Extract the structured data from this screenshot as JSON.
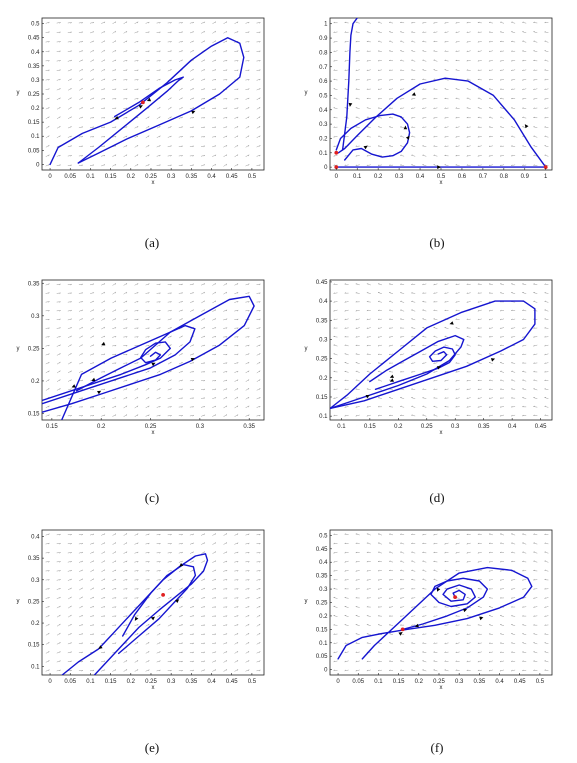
{
  "colors": {
    "trajectory": "#1515d0",
    "equilibrium": "#e02020",
    "vector_field": "#9a9a9a",
    "arrow": "#000000"
  },
  "chart_data": [
    {
      "type": "line",
      "caption": "(a)",
      "xlabel": "x",
      "ylabel": "y",
      "xlim": [
        -0.02,
        0.53
      ],
      "ylim": [
        -0.02,
        0.52
      ],
      "xticks": [
        0,
        0.05,
        0.1,
        0.15,
        0.2,
        0.25,
        0.3,
        0.35,
        0.4,
        0.45,
        0.5
      ],
      "yticks": [
        0,
        0.05,
        0.1,
        0.15,
        0.2,
        0.25,
        0.3,
        0.35,
        0.4,
        0.45,
        0.5
      ],
      "grid": true,
      "vector_field": true,
      "equilibria": [
        [
          0.23,
          0.22
        ]
      ],
      "series": [
        {
          "x": [
            0.0,
            0.02,
            0.08,
            0.15,
            0.22,
            0.29,
            0.35,
            0.4,
            0.44,
            0.47,
            0.48,
            0.47,
            0.42,
            0.35,
            0.27,
            0.19,
            0.12,
            0.07
          ],
          "y": [
            0.0,
            0.06,
            0.11,
            0.15,
            0.21,
            0.29,
            0.37,
            0.42,
            0.45,
            0.43,
            0.38,
            0.31,
            0.25,
            0.19,
            0.14,
            0.09,
            0.04,
            0.005
          ]
        },
        {
          "x": [
            0.07,
            0.12,
            0.18,
            0.24,
            0.29,
            0.32,
            0.33,
            0.31,
            0.27,
            0.22,
            0.16
          ],
          "y": [
            0.005,
            0.06,
            0.13,
            0.2,
            0.26,
            0.3,
            0.31,
            0.3,
            0.27,
            0.22,
            0.17
          ]
        }
      ],
      "arrows": [
        [
          0.19,
          0.18,
          0.23,
          0.21
        ],
        [
          0.28,
          0.25,
          0.24,
          0.225
        ],
        [
          0.33,
          0.17,
          0.36,
          0.19
        ],
        [
          0.2,
          0.19,
          0.16,
          0.16
        ]
      ]
    },
    {
      "type": "line",
      "caption": "(b)",
      "xlabel": "x",
      "ylabel": "y",
      "xlim": [
        -0.03,
        1.03
      ],
      "ylim": [
        -0.02,
        1.04
      ],
      "xticks": [
        0,
        0.1,
        0.2,
        0.3,
        0.4,
        0.5,
        0.6,
        0.7,
        0.8,
        0.9,
        1
      ],
      "yticks": [
        0,
        0.1,
        0.2,
        0.3,
        0.4,
        0.5,
        0.6,
        0.7,
        0.8,
        0.9,
        1
      ],
      "grid": true,
      "vector_field": true,
      "equilibria": [
        [
          0,
          0
        ],
        [
          1,
          0
        ],
        [
          0,
          0.1
        ]
      ],
      "series": [
        {
          "x": [
            0.0,
            0.2,
            0.4,
            0.6,
            0.8,
            1.0
          ],
          "y": [
            0.0,
            0.0,
            0.0,
            0.0,
            0.0,
            0.0
          ]
        },
        {
          "x": [
            1.0,
            0.93,
            0.85,
            0.75,
            0.63,
            0.52,
            0.4,
            0.29,
            0.19,
            0.1,
            0.04,
            0.01
          ],
          "y": [
            0.0,
            0.14,
            0.33,
            0.5,
            0.6,
            0.62,
            0.58,
            0.48,
            0.35,
            0.22,
            0.13,
            0.1
          ]
        },
        {
          "x": [
            0.03,
            0.05,
            0.06,
            0.065,
            0.07,
            0.08,
            0.1
          ],
          "y": [
            0.12,
            0.35,
            0.6,
            0.8,
            0.92,
            1.0,
            1.04
          ]
        },
        {
          "x": [
            0.0,
            0.02,
            0.07,
            0.14,
            0.21,
            0.27,
            0.31,
            0.34,
            0.35,
            0.34,
            0.31,
            0.27,
            0.22,
            0.17,
            0.12,
            0.08,
            0.04
          ],
          "y": [
            0.12,
            0.2,
            0.27,
            0.33,
            0.36,
            0.37,
            0.35,
            0.3,
            0.24,
            0.17,
            0.11,
            0.08,
            0.07,
            0.09,
            0.13,
            0.12,
            0.05
          ]
        }
      ],
      "arrows": [
        [
          0.45,
          0.0,
          0.5,
          0.0
        ],
        [
          0.92,
          0.26,
          0.9,
          0.3
        ],
        [
          0.41,
          0.53,
          0.36,
          0.5
        ],
        [
          0.07,
          0.47,
          0.065,
          0.42
        ],
        [
          0.12,
          0.12,
          0.15,
          0.15
        ],
        [
          0.33,
          0.18,
          0.35,
          0.22
        ],
        [
          0.33,
          0.24,
          0.33,
          0.29
        ]
      ]
    },
    {
      "type": "line",
      "caption": "(c)",
      "xlabel": "x",
      "ylabel": "y",
      "xlim": [
        0.14,
        0.365
      ],
      "ylim": [
        0.14,
        0.355
      ],
      "xticks": [
        0.15,
        0.2,
        0.25,
        0.3,
        0.35
      ],
      "yticks": [
        0.15,
        0.2,
        0.25,
        0.3,
        0.35
      ],
      "grid": true,
      "vector_field": true,
      "equilibria": [],
      "series": [
        {
          "x": [
            0.14,
            0.17,
            0.2,
            0.23,
            0.26,
            0.29,
            0.32,
            0.345,
            0.355,
            0.35,
            0.33,
            0.3,
            0.27,
            0.24,
            0.21,
            0.18,
            0.16
          ],
          "y": [
            0.152,
            0.165,
            0.18,
            0.195,
            0.21,
            0.23,
            0.255,
            0.285,
            0.315,
            0.33,
            0.325,
            0.3,
            0.275,
            0.255,
            0.235,
            0.21,
            0.14
          ]
        },
        {
          "x": [
            0.14,
            0.18,
            0.22,
            0.25,
            0.275,
            0.29,
            0.295,
            0.285,
            0.27,
            0.255,
            0.24,
            0.22,
            0.2,
            0.175
          ],
          "y": [
            0.165,
            0.185,
            0.205,
            0.22,
            0.24,
            0.26,
            0.28,
            0.285,
            0.275,
            0.255,
            0.235,
            0.22,
            0.205,
            0.185
          ]
        },
        {
          "x": [
            0.14,
            0.18,
            0.22,
            0.245,
            0.26,
            0.27,
            0.265,
            0.255,
            0.245,
            0.24,
            0.245,
            0.255,
            0.26,
            0.255,
            0.25
          ],
          "y": [
            0.17,
            0.19,
            0.21,
            0.225,
            0.235,
            0.25,
            0.26,
            0.258,
            0.248,
            0.236,
            0.228,
            0.232,
            0.24,
            0.244,
            0.238
          ]
        }
      ],
      "arrows": [
        [
          0.28,
          0.225,
          0.295,
          0.235
        ],
        [
          0.245,
          0.22,
          0.255,
          0.228
        ],
        [
          0.215,
          0.265,
          0.2,
          0.255
        ],
        [
          0.205,
          0.21,
          0.19,
          0.2
        ],
        [
          0.19,
          0.176,
          0.2,
          0.185
        ],
        [
          0.185,
          0.2,
          0.17,
          0.19
        ]
      ]
    },
    {
      "type": "line",
      "caption": "(d)",
      "xlabel": "x",
      "ylabel": "y",
      "xlim": [
        0.08,
        0.47
      ],
      "ylim": [
        0.09,
        0.455
      ],
      "xticks": [
        0.1,
        0.15,
        0.2,
        0.25,
        0.3,
        0.35,
        0.4,
        0.45
      ],
      "yticks": [
        0.1,
        0.15,
        0.2,
        0.25,
        0.3,
        0.35,
        0.4,
        0.45
      ],
      "grid": true,
      "vector_field": true,
      "equilibria": [],
      "series": [
        {
          "x": [
            0.08,
            0.14,
            0.2,
            0.26,
            0.32,
            0.38,
            0.42,
            0.44,
            0.44,
            0.42,
            0.37,
            0.31,
            0.25,
            0.2,
            0.15,
            0.11,
            0.08
          ],
          "y": [
            0.12,
            0.14,
            0.17,
            0.2,
            0.23,
            0.27,
            0.3,
            0.34,
            0.38,
            0.4,
            0.4,
            0.37,
            0.33,
            0.27,
            0.21,
            0.155,
            0.12
          ]
        },
        {
          "x": [
            0.08,
            0.14,
            0.2,
            0.25,
            0.29,
            0.31,
            0.315,
            0.3,
            0.27,
            0.24,
            0.21,
            0.18,
            0.15
          ],
          "y": [
            0.12,
            0.15,
            0.18,
            0.21,
            0.245,
            0.28,
            0.3,
            0.31,
            0.295,
            0.27,
            0.245,
            0.22,
            0.19
          ]
        },
        {
          "x": [
            0.16,
            0.2,
            0.24,
            0.27,
            0.29,
            0.3,
            0.295,
            0.28,
            0.265,
            0.255,
            0.26,
            0.275,
            0.285,
            0.28,
            0.27
          ],
          "y": [
            0.17,
            0.19,
            0.21,
            0.225,
            0.24,
            0.26,
            0.275,
            0.28,
            0.27,
            0.255,
            0.243,
            0.245,
            0.26,
            0.268,
            0.262
          ]
        }
      ],
      "arrows": [
        [
          0.35,
          0.24,
          0.37,
          0.25
        ],
        [
          0.26,
          0.22,
          0.275,
          0.23
        ],
        [
          0.31,
          0.35,
          0.29,
          0.34
        ],
        [
          0.2,
          0.21,
          0.185,
          0.2
        ],
        [
          0.135,
          0.145,
          0.15,
          0.155
        ],
        [
          0.2,
          0.2,
          0.185,
          0.19
        ]
      ]
    },
    {
      "type": "line",
      "caption": "(e)",
      "xlabel": "x",
      "ylabel": "y",
      "xlim": [
        -0.02,
        0.53
      ],
      "ylim": [
        0.08,
        0.415
      ],
      "xticks": [
        0,
        0.05,
        0.1,
        0.15,
        0.2,
        0.25,
        0.3,
        0.35,
        0.4,
        0.45,
        0.5
      ],
      "yticks": [
        0.1,
        0.15,
        0.2,
        0.25,
        0.3,
        0.35,
        0.4
      ],
      "grid": true,
      "vector_field": true,
      "equilibria": [
        [
          0.28,
          0.265
        ]
      ],
      "series": [
        {
          "x": [
            0.11,
            0.17,
            0.22,
            0.27,
            0.31,
            0.35,
            0.38,
            0.39,
            0.385,
            0.36,
            0.32,
            0.28,
            0.24,
            0.2,
            0.16,
            0.12,
            0.07,
            0.03
          ],
          "y": [
            0.08,
            0.14,
            0.19,
            0.23,
            0.26,
            0.29,
            0.32,
            0.345,
            0.36,
            0.355,
            0.33,
            0.3,
            0.26,
            0.22,
            0.18,
            0.14,
            0.11,
            0.08
          ]
        },
        {
          "x": [
            0.17,
            0.22,
            0.27,
            0.31,
            0.34,
            0.36,
            0.355,
            0.33,
            0.29,
            0.25,
            0.21,
            0.18
          ],
          "y": [
            0.13,
            0.17,
            0.21,
            0.25,
            0.28,
            0.31,
            0.33,
            0.335,
            0.31,
            0.27,
            0.22,
            0.17
          ]
        }
      ],
      "arrows": [
        [
          0.3,
          0.24,
          0.32,
          0.255
        ],
        [
          0.24,
          0.2,
          0.26,
          0.215
        ],
        [
          0.22,
          0.22,
          0.21,
          0.205
        ],
        [
          0.14,
          0.155,
          0.12,
          0.14
        ],
        [
          0.34,
          0.345,
          0.32,
          0.33
        ]
      ]
    },
    {
      "type": "line",
      "caption": "(f)",
      "xlabel": "x",
      "ylabel": "y",
      "xlim": [
        -0.02,
        0.53
      ],
      "ylim": [
        -0.02,
        0.52
      ],
      "xticks": [
        0,
        0.05,
        0.1,
        0.15,
        0.2,
        0.25,
        0.3,
        0.35,
        0.4,
        0.45,
        0.5
      ],
      "yticks": [
        0,
        0.05,
        0.1,
        0.15,
        0.2,
        0.25,
        0.3,
        0.35,
        0.4,
        0.45,
        0.5
      ],
      "grid": true,
      "vector_field": true,
      "equilibria": [
        [
          0.29,
          0.27
        ],
        [
          0.16,
          0.15
        ]
      ],
      "series": [
        {
          "x": [
            0.0,
            0.02,
            0.06,
            0.11,
            0.17,
            0.24,
            0.32,
            0.4,
            0.46,
            0.48,
            0.47,
            0.43,
            0.37,
            0.3,
            0.24,
            0.19,
            0.14,
            0.09,
            0.06
          ],
          "y": [
            0.04,
            0.09,
            0.12,
            0.135,
            0.15,
            0.165,
            0.19,
            0.23,
            0.27,
            0.31,
            0.34,
            0.37,
            0.38,
            0.36,
            0.3,
            0.23,
            0.16,
            0.09,
            0.04
          ]
        },
        {
          "x": [
            0.16,
            0.21,
            0.27,
            0.32,
            0.36,
            0.37,
            0.35,
            0.31,
            0.27,
            0.24,
            0.23,
            0.25,
            0.28,
            0.32,
            0.34,
            0.33,
            0.3,
            0.27,
            0.26,
            0.28,
            0.31,
            0.315,
            0.3,
            0.285,
            0.29
          ],
          "y": [
            0.15,
            0.17,
            0.2,
            0.23,
            0.27,
            0.3,
            0.33,
            0.34,
            0.33,
            0.31,
            0.28,
            0.25,
            0.235,
            0.245,
            0.27,
            0.3,
            0.315,
            0.3,
            0.28,
            0.255,
            0.26,
            0.28,
            0.295,
            0.285,
            0.27
          ]
        }
      ],
      "arrows": [
        [
          0.34,
          0.185,
          0.36,
          0.195
        ],
        [
          0.21,
          0.17,
          0.19,
          0.16
        ],
        [
          0.3,
          0.215,
          0.32,
          0.225
        ],
        [
          0.14,
          0.12,
          0.16,
          0.14
        ],
        [
          0.25,
          0.305,
          0.245,
          0.29
        ]
      ]
    }
  ]
}
